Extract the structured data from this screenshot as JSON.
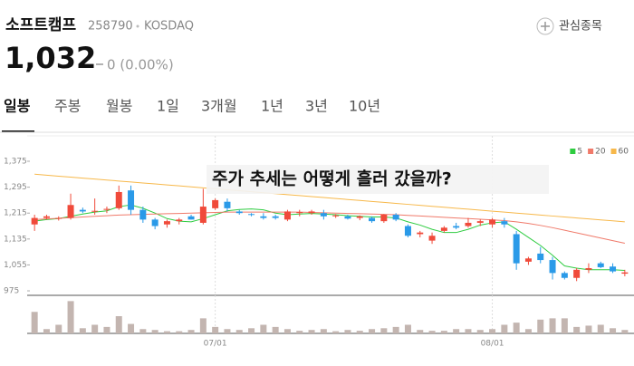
{
  "header": {
    "name": "소프트캠프",
    "code": "258790",
    "market": "KOSDAQ",
    "watch_button": "관심종목",
    "price": "1,032",
    "change": "0 (0.00%)"
  },
  "tabs": [
    "일봉",
    "주봉",
    "월봉",
    "1일",
    "3개월",
    "1년",
    "3년",
    "10년"
  ],
  "chart_data": {
    "type": "candlestick",
    "annotation": "주가 추세는 어떻게 흘러 갔을까?",
    "categories": [
      null,
      null,
      null,
      null,
      null,
      null,
      null,
      null,
      null,
      null,
      null,
      null,
      null,
      null,
      null,
      "07/01",
      null,
      null,
      null,
      null,
      null,
      null,
      null,
      null,
      null,
      null,
      null,
      null,
      null,
      null,
      null,
      null,
      null,
      null,
      null,
      null,
      null,
      null,
      "08/01",
      null,
      null,
      null,
      null,
      null,
      null,
      null,
      null,
      null,
      null,
      null
    ],
    "open": [
      1180,
      1200,
      1198,
      1200,
      1225,
      1220,
      1225,
      1230,
      1285,
      1225,
      1195,
      1180,
      1190,
      1205,
      1185,
      1230,
      1250,
      1220,
      1212,
      1205,
      1205,
      1195,
      1215,
      1215,
      1215,
      1205,
      1205,
      1200,
      1200,
      1190,
      1210,
      1175,
      1150,
      1130,
      1160,
      1175,
      1175,
      1185,
      1180,
      1190,
      1150,
      1065,
      1090,
      1070,
      1030,
      1015,
      1040,
      1060,
      1050,
      1028
    ],
    "high": [
      1210,
      1210,
      1205,
      1275,
      1232,
      1260,
      1235,
      1300,
      1300,
      1235,
      1200,
      1195,
      1200,
      1210,
      1290,
      1260,
      1260,
      1225,
      1215,
      1215,
      1210,
      1225,
      1225,
      1225,
      1225,
      1212,
      1210,
      1208,
      1205,
      1212,
      1215,
      1180,
      1160,
      1155,
      1175,
      1185,
      1200,
      1195,
      1200,
      1200,
      1160,
      1080,
      1110,
      1080,
      1035,
      1045,
      1060,
      1065,
      1060,
      1040
    ],
    "low": [
      1160,
      1195,
      1192,
      1195,
      1215,
      1210,
      1215,
      1225,
      1210,
      1185,
      1165,
      1170,
      1180,
      1195,
      1180,
      1225,
      1220,
      1210,
      1205,
      1195,
      1195,
      1190,
      1205,
      1210,
      1195,
      1200,
      1195,
      1193,
      1185,
      1185,
      1190,
      1140,
      1140,
      1120,
      1155,
      1165,
      1170,
      1175,
      1170,
      1170,
      1040,
      1055,
      1060,
      1010,
      1010,
      1005,
      1030,
      1045,
      1030,
      1020
    ],
    "close": [
      1200,
      1205,
      1200,
      1240,
      1220,
      1222,
      1228,
      1280,
      1225,
      1195,
      1175,
      1190,
      1195,
      1195,
      1235,
      1255,
      1230,
      1215,
      1210,
      1200,
      1200,
      1220,
      1218,
      1220,
      1205,
      1208,
      1198,
      1205,
      1190,
      1210,
      1195,
      1145,
      1155,
      1145,
      1170,
      1170,
      1185,
      1190,
      1195,
      1180,
      1060,
      1075,
      1070,
      1030,
      1015,
      1040,
      1045,
      1048,
      1035,
      1032
    ],
    "volume": [
      50,
      10,
      20,
      75,
      12,
      20,
      15,
      40,
      22,
      10,
      8,
      5,
      5,
      8,
      35,
      15,
      10,
      8,
      12,
      20,
      15,
      10,
      6,
      8,
      10,
      5,
      8,
      6,
      10,
      12,
      15,
      20,
      8,
      6,
      6,
      10,
      10,
      8,
      10,
      20,
      25,
      10,
      32,
      35,
      35,
      15,
      18,
      20,
      12,
      8
    ],
    "up_color": "#f04a3a",
    "down_color": "#2a9ae8",
    "volume_color": "#c3b5b0",
    "series": [
      {
        "name": "5",
        "color": "#2ecc40",
        "values": [
          1190,
          1195,
          1198,
          1205,
          1212,
          1218,
          1222,
          1235,
          1240,
          1230,
          1215,
          1198,
          1190,
          1188,
          1198,
          1210,
          1222,
          1226,
          1228,
          1225,
          1215,
          1210,
          1212,
          1214,
          1212,
          1210,
          1207,
          1205,
          1203,
          1203,
          1200,
          1188,
          1178,
          1165,
          1155,
          1155,
          1165,
          1178,
          1185,
          1188,
          1165,
          1140,
          1115,
          1085,
          1052,
          1045,
          1040,
          1040,
          1040,
          1038
        ]
      },
      {
        "name": "20",
        "color": "#f07a6a",
        "values": [
          1195,
          1197,
          1199,
          1201,
          1203,
          1205,
          1207,
          1209,
          1210,
          1211,
          1212,
          1213,
          1214,
          1215,
          1216,
          1217,
          1218,
          1218,
          1218,
          1218,
          1218,
          1218,
          1218,
          1217,
          1216,
          1215,
          1214,
          1213,
          1212,
          1211,
          1210,
          1208,
          1206,
          1204,
          1202,
          1200,
          1198,
          1196,
          1194,
          1192,
          1188,
          1183,
          1177,
          1170,
          1162,
          1154,
          1146,
          1138,
          1130,
          1122
        ]
      },
      {
        "name": "60",
        "color": "#f7b84a",
        "values": [
          1335,
          1332,
          1329,
          1326,
          1323,
          1320,
          1317,
          1314,
          1311,
          1308,
          1305,
          1302,
          1299,
          1296,
          1293,
          1290,
          1287,
          1284,
          1281,
          1278,
          1275,
          1272,
          1269,
          1266,
          1263,
          1260,
          1257,
          1254,
          1251,
          1248,
          1245,
          1242,
          1239,
          1236,
          1233,
          1230,
          1227,
          1224,
          1221,
          1218,
          1215,
          1212,
          1209,
          1206,
          1203,
          1200,
          1197,
          1194,
          1191,
          1188
        ]
      }
    ],
    "ylim": [
      960,
      1455
    ],
    "yticks": [
      {
        "value": 975,
        "label": "975"
      },
      {
        "value": 1055,
        "label": "1,055"
      },
      {
        "value": 1135,
        "label": "1,135"
      },
      {
        "value": 1215,
        "label": "1,215"
      },
      {
        "value": 1295,
        "label": "1,295"
      },
      {
        "value": 1375,
        "label": "1,375"
      }
    ],
    "vlim": [
      0,
      80
    ],
    "legend": "top-right"
  }
}
